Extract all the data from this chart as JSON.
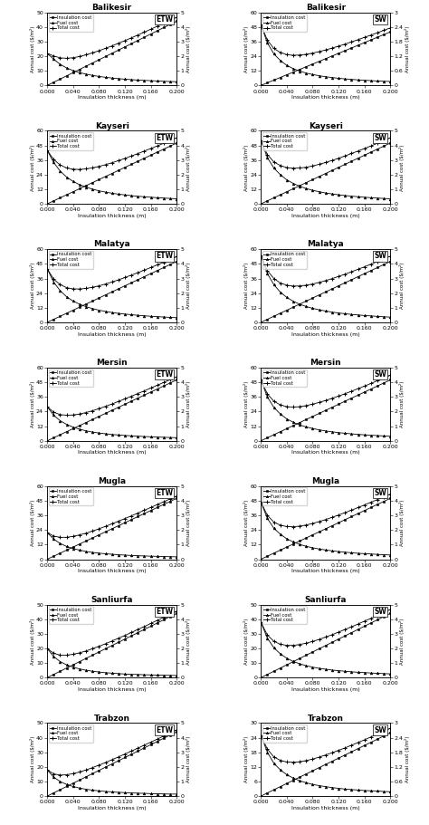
{
  "cities": [
    "Balikesir",
    "Kayseri",
    "Malatya",
    "Mersin",
    "Mugla",
    "Sanliurfa",
    "Trabzon"
  ],
  "wall_types": [
    "ETW",
    "SW"
  ],
  "x": [
    0.0,
    0.01,
    0.02,
    0.03,
    0.04,
    0.05,
    0.06,
    0.07,
    0.08,
    0.09,
    0.1,
    0.11,
    0.12,
    0.13,
    0.14,
    0.15,
    0.16,
    0.17,
    0.18,
    0.19,
    0.2
  ],
  "xticks": [
    0.0,
    0.04,
    0.08,
    0.12,
    0.16,
    0.2
  ],
  "xlabel": "Insulation thickness (m)",
  "ylabel_left": "Annual cost ($/m²)",
  "ylabel_right": "Annual cost ($/m²)",
  "curves": {
    "Balikesir_ETW": {
      "ylim_left": [
        0,
        50
      ],
      "ylim_right": [
        0,
        5
      ],
      "insulation": [
        0.0,
        2.2,
        4.4,
        6.6,
        8.8,
        11.0,
        13.2,
        15.4,
        17.6,
        19.8,
        22.0,
        24.2,
        26.4,
        28.6,
        30.8,
        33.0,
        35.2,
        37.4,
        39.6,
        41.8,
        44.0
      ],
      "fuel": [
        22.0,
        18.0,
        14.5,
        12.0,
        10.2,
        8.8,
        7.8,
        6.9,
        6.2,
        5.6,
        5.1,
        4.7,
        4.3,
        4.0,
        3.7,
        3.5,
        3.3,
        3.1,
        2.9,
        2.7,
        2.6
      ],
      "total": [
        22.0,
        20.2,
        18.9,
        18.6,
        19.0,
        19.8,
        21.0,
        22.3,
        23.8,
        25.4,
        27.1,
        28.9,
        30.7,
        32.6,
        34.5,
        36.5,
        38.5,
        40.5,
        42.5,
        44.5,
        46.6
      ]
    },
    "Balikesir_SW": {
      "ylim_left": [
        0,
        60
      ],
      "ylim_right": [
        0,
        3
      ],
      "insulation": [
        0.0,
        2.2,
        4.4,
        6.6,
        8.8,
        11.0,
        13.2,
        15.4,
        17.6,
        19.8,
        22.0,
        24.2,
        26.4,
        28.6,
        30.8,
        33.0,
        35.2,
        37.4,
        39.6,
        41.8,
        44.0
      ],
      "fuel": [
        50.0,
        35.0,
        26.0,
        20.5,
        16.5,
        13.8,
        11.8,
        10.2,
        9.0,
        8.0,
        7.2,
        6.5,
        5.9,
        5.4,
        5.0,
        4.6,
        4.3,
        4.0,
        3.7,
        3.5,
        3.3
      ],
      "total": [
        50.0,
        37.2,
        30.4,
        27.1,
        25.3,
        24.8,
        25.0,
        25.6,
        26.6,
        27.8,
        29.2,
        30.7,
        32.3,
        34.0,
        35.8,
        37.6,
        39.5,
        41.4,
        43.3,
        45.3,
        47.3
      ]
    },
    "Kayseri_ETW": {
      "ylim_left": [
        0,
        60
      ],
      "ylim_right": [
        0,
        5
      ],
      "insulation": [
        0.0,
        2.5,
        5.0,
        7.5,
        10.0,
        12.5,
        15.0,
        17.5,
        20.0,
        22.5,
        25.0,
        27.5,
        30.0,
        32.5,
        35.0,
        37.5,
        40.0,
        42.5,
        45.0,
        47.5,
        50.0
      ],
      "fuel": [
        44.0,
        34.0,
        27.0,
        22.0,
        18.5,
        15.8,
        13.8,
        12.1,
        10.8,
        9.7,
        8.8,
        8.0,
        7.4,
        6.8,
        6.3,
        5.9,
        5.5,
        5.1,
        4.8,
        4.5,
        4.2
      ],
      "total": [
        44.0,
        36.5,
        32.0,
        29.5,
        28.5,
        28.3,
        28.8,
        29.6,
        30.8,
        32.2,
        33.8,
        35.5,
        37.4,
        39.3,
        41.3,
        43.4,
        45.5,
        47.6,
        49.8,
        52.0,
        54.2
      ]
    },
    "Kayseri_SW": {
      "ylim_left": [
        0,
        60
      ],
      "ylim_right": [
        0,
        5
      ],
      "insulation": [
        0.0,
        2.5,
        5.0,
        7.5,
        10.0,
        12.5,
        15.0,
        17.5,
        20.0,
        22.5,
        25.0,
        27.5,
        30.0,
        32.5,
        35.0,
        37.5,
        40.0,
        42.5,
        45.0,
        47.5,
        50.0
      ],
      "fuel": [
        52.0,
        38.0,
        29.5,
        24.0,
        19.8,
        16.8,
        14.5,
        12.6,
        11.2,
        10.0,
        9.0,
        8.2,
        7.5,
        6.9,
        6.4,
        5.9,
        5.5,
        5.1,
        4.8,
        4.5,
        4.2
      ],
      "total": [
        52.0,
        40.5,
        34.5,
        31.5,
        29.8,
        29.3,
        29.5,
        30.1,
        31.2,
        32.5,
        34.0,
        35.7,
        37.5,
        39.4,
        41.4,
        43.4,
        45.5,
        47.6,
        49.8,
        52.0,
        54.2
      ]
    },
    "Malatya_ETW": {
      "ylim_left": [
        0,
        60
      ],
      "ylim_right": [
        0,
        5
      ],
      "insulation": [
        0.0,
        2.5,
        5.0,
        7.5,
        10.0,
        12.5,
        15.0,
        17.5,
        20.0,
        22.5,
        25.0,
        27.5,
        30.0,
        32.5,
        35.0,
        37.5,
        40.0,
        42.5,
        45.0,
        47.5,
        50.0
      ],
      "fuel": [
        44.0,
        33.0,
        26.0,
        21.0,
        17.5,
        14.9,
        12.9,
        11.3,
        10.0,
        9.0,
        8.1,
        7.4,
        6.8,
        6.3,
        5.8,
        5.4,
        5.0,
        4.7,
        4.4,
        4.1,
        3.9
      ],
      "total": [
        44.0,
        35.5,
        31.0,
        28.5,
        27.5,
        27.4,
        27.9,
        28.8,
        30.0,
        31.5,
        33.1,
        34.9,
        36.8,
        38.8,
        40.8,
        42.9,
        45.0,
        47.2,
        49.4,
        51.6,
        53.9
      ]
    },
    "Malatya_SW": {
      "ylim_left": [
        0,
        60
      ],
      "ylim_right": [
        0,
        5
      ],
      "insulation": [
        0.0,
        2.5,
        5.0,
        7.5,
        10.0,
        12.5,
        15.0,
        17.5,
        20.0,
        22.5,
        25.0,
        27.5,
        30.0,
        32.5,
        35.0,
        37.5,
        40.0,
        42.5,
        45.0,
        47.5,
        50.0
      ],
      "fuel": [
        55.0,
        40.0,
        31.0,
        24.8,
        20.5,
        17.3,
        14.9,
        13.0,
        11.5,
        10.3,
        9.3,
        8.4,
        7.7,
        7.1,
        6.5,
        6.1,
        5.6,
        5.3,
        4.9,
        4.6,
        4.3
      ],
      "total": [
        55.0,
        42.5,
        36.0,
        32.3,
        30.5,
        29.8,
        29.9,
        30.5,
        31.5,
        32.8,
        34.3,
        35.9,
        37.7,
        39.6,
        41.5,
        43.6,
        45.6,
        47.8,
        49.9,
        52.1,
        54.3
      ]
    },
    "Mersin_ETW": {
      "ylim_left": [
        0,
        60
      ],
      "ylim_right": [
        0,
        5
      ],
      "insulation": [
        0.0,
        2.5,
        5.0,
        7.5,
        10.0,
        12.5,
        15.0,
        17.5,
        20.0,
        22.5,
        25.0,
        27.5,
        30.0,
        32.5,
        35.0,
        37.5,
        40.0,
        42.5,
        45.0,
        47.5,
        50.0
      ],
      "fuel": [
        28.0,
        21.0,
        16.5,
        13.5,
        11.2,
        9.5,
        8.2,
        7.2,
        6.4,
        5.8,
        5.2,
        4.8,
        4.4,
        4.1,
        3.8,
        3.5,
        3.3,
        3.1,
        2.9,
        2.7,
        2.6
      ],
      "total": [
        28.0,
        23.5,
        21.5,
        21.0,
        21.2,
        22.0,
        23.2,
        24.7,
        26.4,
        28.3,
        30.2,
        32.3,
        34.4,
        36.6,
        38.8,
        41.0,
        43.3,
        45.6,
        47.9,
        50.2,
        52.6
      ]
    },
    "Mersin_SW": {
      "ylim_left": [
        0,
        60
      ],
      "ylim_right": [
        0,
        5
      ],
      "insulation": [
        0.0,
        2.5,
        5.0,
        7.5,
        10.0,
        12.5,
        15.0,
        17.5,
        20.0,
        22.5,
        25.0,
        27.5,
        30.0,
        32.5,
        35.0,
        37.5,
        40.0,
        42.5,
        45.0,
        47.5,
        50.0
      ],
      "fuel": [
        50.0,
        36.0,
        27.5,
        22.0,
        18.0,
        15.2,
        13.0,
        11.4,
        10.1,
        9.0,
        8.1,
        7.4,
        6.7,
        6.2,
        5.7,
        5.3,
        4.9,
        4.6,
        4.3,
        4.0,
        3.8
      ],
      "total": [
        50.0,
        38.5,
        32.5,
        29.5,
        28.0,
        27.7,
        28.0,
        28.9,
        30.1,
        31.5,
        33.1,
        34.9,
        36.7,
        38.7,
        40.7,
        42.8,
        44.9,
        47.1,
        49.3,
        51.5,
        53.8
      ]
    },
    "Mugla_ETW": {
      "ylim_left": [
        0,
        60
      ],
      "ylim_right": [
        0,
        5
      ],
      "insulation": [
        0.0,
        2.5,
        5.0,
        7.5,
        10.0,
        12.5,
        15.0,
        17.5,
        20.0,
        22.5,
        25.0,
        27.5,
        30.0,
        32.5,
        35.0,
        37.5,
        40.0,
        42.5,
        45.0,
        47.5,
        50.0
      ],
      "fuel": [
        22.0,
        16.5,
        13.0,
        10.5,
        8.8,
        7.5,
        6.4,
        5.6,
        5.0,
        4.5,
        4.1,
        3.7,
        3.4,
        3.1,
        2.9,
        2.7,
        2.5,
        2.4,
        2.2,
        2.1,
        2.0
      ],
      "total": [
        22.0,
        19.0,
        18.0,
        18.0,
        18.8,
        20.0,
        21.4,
        23.1,
        25.0,
        27.0,
        29.1,
        31.2,
        33.4,
        35.6,
        37.9,
        40.2,
        42.5,
        44.9,
        47.2,
        49.6,
        52.0
      ]
    },
    "Mugla_SW": {
      "ylim_left": [
        0,
        60
      ],
      "ylim_right": [
        0,
        5
      ],
      "insulation": [
        0.0,
        2.5,
        5.0,
        7.5,
        10.0,
        12.5,
        15.0,
        17.5,
        20.0,
        22.5,
        25.0,
        27.5,
        30.0,
        32.5,
        35.0,
        37.5,
        40.0,
        42.5,
        45.0,
        47.5,
        50.0
      ],
      "fuel": [
        47.0,
        33.5,
        25.5,
        20.5,
        16.8,
        14.2,
        12.2,
        10.6,
        9.4,
        8.4,
        7.6,
        6.9,
        6.3,
        5.8,
        5.3,
        4.9,
        4.6,
        4.3,
        4.0,
        3.7,
        3.5
      ],
      "total": [
        47.0,
        36.0,
        30.5,
        28.0,
        26.8,
        26.7,
        27.2,
        28.1,
        29.4,
        30.9,
        32.6,
        34.4,
        36.3,
        38.3,
        40.3,
        42.4,
        44.6,
        46.8,
        49.0,
        51.2,
        53.5
      ]
    },
    "Sanliurfa_ETW": {
      "ylim_left": [
        0,
        50
      ],
      "ylim_right": [
        0,
        5
      ],
      "insulation": [
        0.0,
        2.2,
        4.4,
        6.6,
        8.8,
        11.0,
        13.2,
        15.4,
        17.6,
        19.8,
        22.0,
        24.2,
        26.4,
        28.6,
        30.8,
        33.0,
        35.2,
        37.4,
        39.6,
        41.8,
        44.0
      ],
      "fuel": [
        20.0,
        14.5,
        11.0,
        8.8,
        7.2,
        6.0,
        5.1,
        4.4,
        3.9,
        3.4,
        3.1,
        2.8,
        2.5,
        2.3,
        2.2,
        2.0,
        1.9,
        1.8,
        1.7,
        1.6,
        1.5
      ],
      "total": [
        20.0,
        16.7,
        15.4,
        15.4,
        16.0,
        17.0,
        18.3,
        19.8,
        21.5,
        23.2,
        25.1,
        27.0,
        28.9,
        30.9,
        33.0,
        35.0,
        37.1,
        39.2,
        41.3,
        43.4,
        45.5
      ]
    },
    "Sanliurfa_SW": {
      "ylim_left": [
        0,
        50
      ],
      "ylim_right": [
        0,
        5
      ],
      "insulation": [
        0.0,
        2.2,
        4.4,
        6.6,
        8.8,
        11.0,
        13.2,
        15.4,
        17.6,
        19.8,
        22.0,
        24.2,
        26.4,
        28.6,
        30.8,
        33.0,
        35.2,
        37.4,
        39.6,
        41.8,
        44.0
      ],
      "fuel": [
        38.0,
        27.0,
        20.5,
        16.3,
        13.3,
        11.1,
        9.5,
        8.2,
        7.2,
        6.4,
        5.8,
        5.2,
        4.8,
        4.4,
        4.0,
        3.7,
        3.5,
        3.2,
        3.0,
        2.8,
        2.6
      ],
      "total": [
        38.0,
        29.2,
        24.9,
        22.9,
        22.1,
        22.1,
        22.7,
        23.6,
        24.8,
        26.2,
        27.8,
        29.4,
        31.2,
        33.0,
        34.8,
        36.7,
        38.7,
        40.6,
        42.6,
        44.6,
        46.6
      ]
    },
    "Trabzon_ETW": {
      "ylim_left": [
        0,
        50
      ],
      "ylim_right": [
        0,
        5
      ],
      "insulation": [
        0.0,
        2.2,
        4.4,
        6.6,
        8.8,
        11.0,
        13.2,
        15.4,
        17.6,
        19.8,
        22.0,
        24.2,
        26.4,
        28.6,
        30.8,
        33.0,
        35.2,
        37.4,
        39.6,
        41.8,
        44.0
      ],
      "fuel": [
        18.0,
        13.0,
        10.0,
        8.0,
        6.6,
        5.5,
        4.7,
        4.1,
        3.6,
        3.2,
        2.9,
        2.6,
        2.4,
        2.2,
        2.0,
        1.9,
        1.7,
        1.6,
        1.5,
        1.4,
        1.4
      ],
      "total": [
        18.0,
        15.2,
        14.4,
        14.6,
        15.4,
        16.5,
        17.9,
        19.5,
        21.2,
        23.0,
        24.9,
        26.8,
        28.8,
        30.8,
        32.8,
        34.9,
        36.9,
        39.0,
        41.1,
        43.2,
        45.4
      ]
    },
    "Trabzon_SW": {
      "ylim_left": [
        0,
        30
      ],
      "ylim_right": [
        0,
        3
      ],
      "insulation": [
        0.0,
        1.3,
        2.6,
        3.9,
        5.2,
        6.5,
        7.8,
        9.1,
        10.4,
        11.7,
        13.0,
        14.3,
        15.6,
        16.9,
        18.2,
        19.5,
        20.8,
        22.1,
        23.4,
        24.7,
        26.0
      ],
      "fuel": [
        25.0,
        18.0,
        13.5,
        10.8,
        8.8,
        7.4,
        6.3,
        5.5,
        4.8,
        4.3,
        3.9,
        3.5,
        3.2,
        2.9,
        2.7,
        2.5,
        2.3,
        2.2,
        2.1,
        1.9,
        1.8
      ],
      "total": [
        25.0,
        19.3,
        16.1,
        14.7,
        14.0,
        13.9,
        14.1,
        14.6,
        15.2,
        16.0,
        16.9,
        17.8,
        18.8,
        19.8,
        20.9,
        22.0,
        23.1,
        24.3,
        25.5,
        26.6,
        27.8
      ]
    }
  },
  "marker_insulation": "s",
  "marker_fuel": "^",
  "marker_total": "+",
  "color_insulation": "black",
  "color_fuel": "black",
  "color_total": "black",
  "figsize": [
    4.74,
    9.11
  ],
  "dpi": 100
}
